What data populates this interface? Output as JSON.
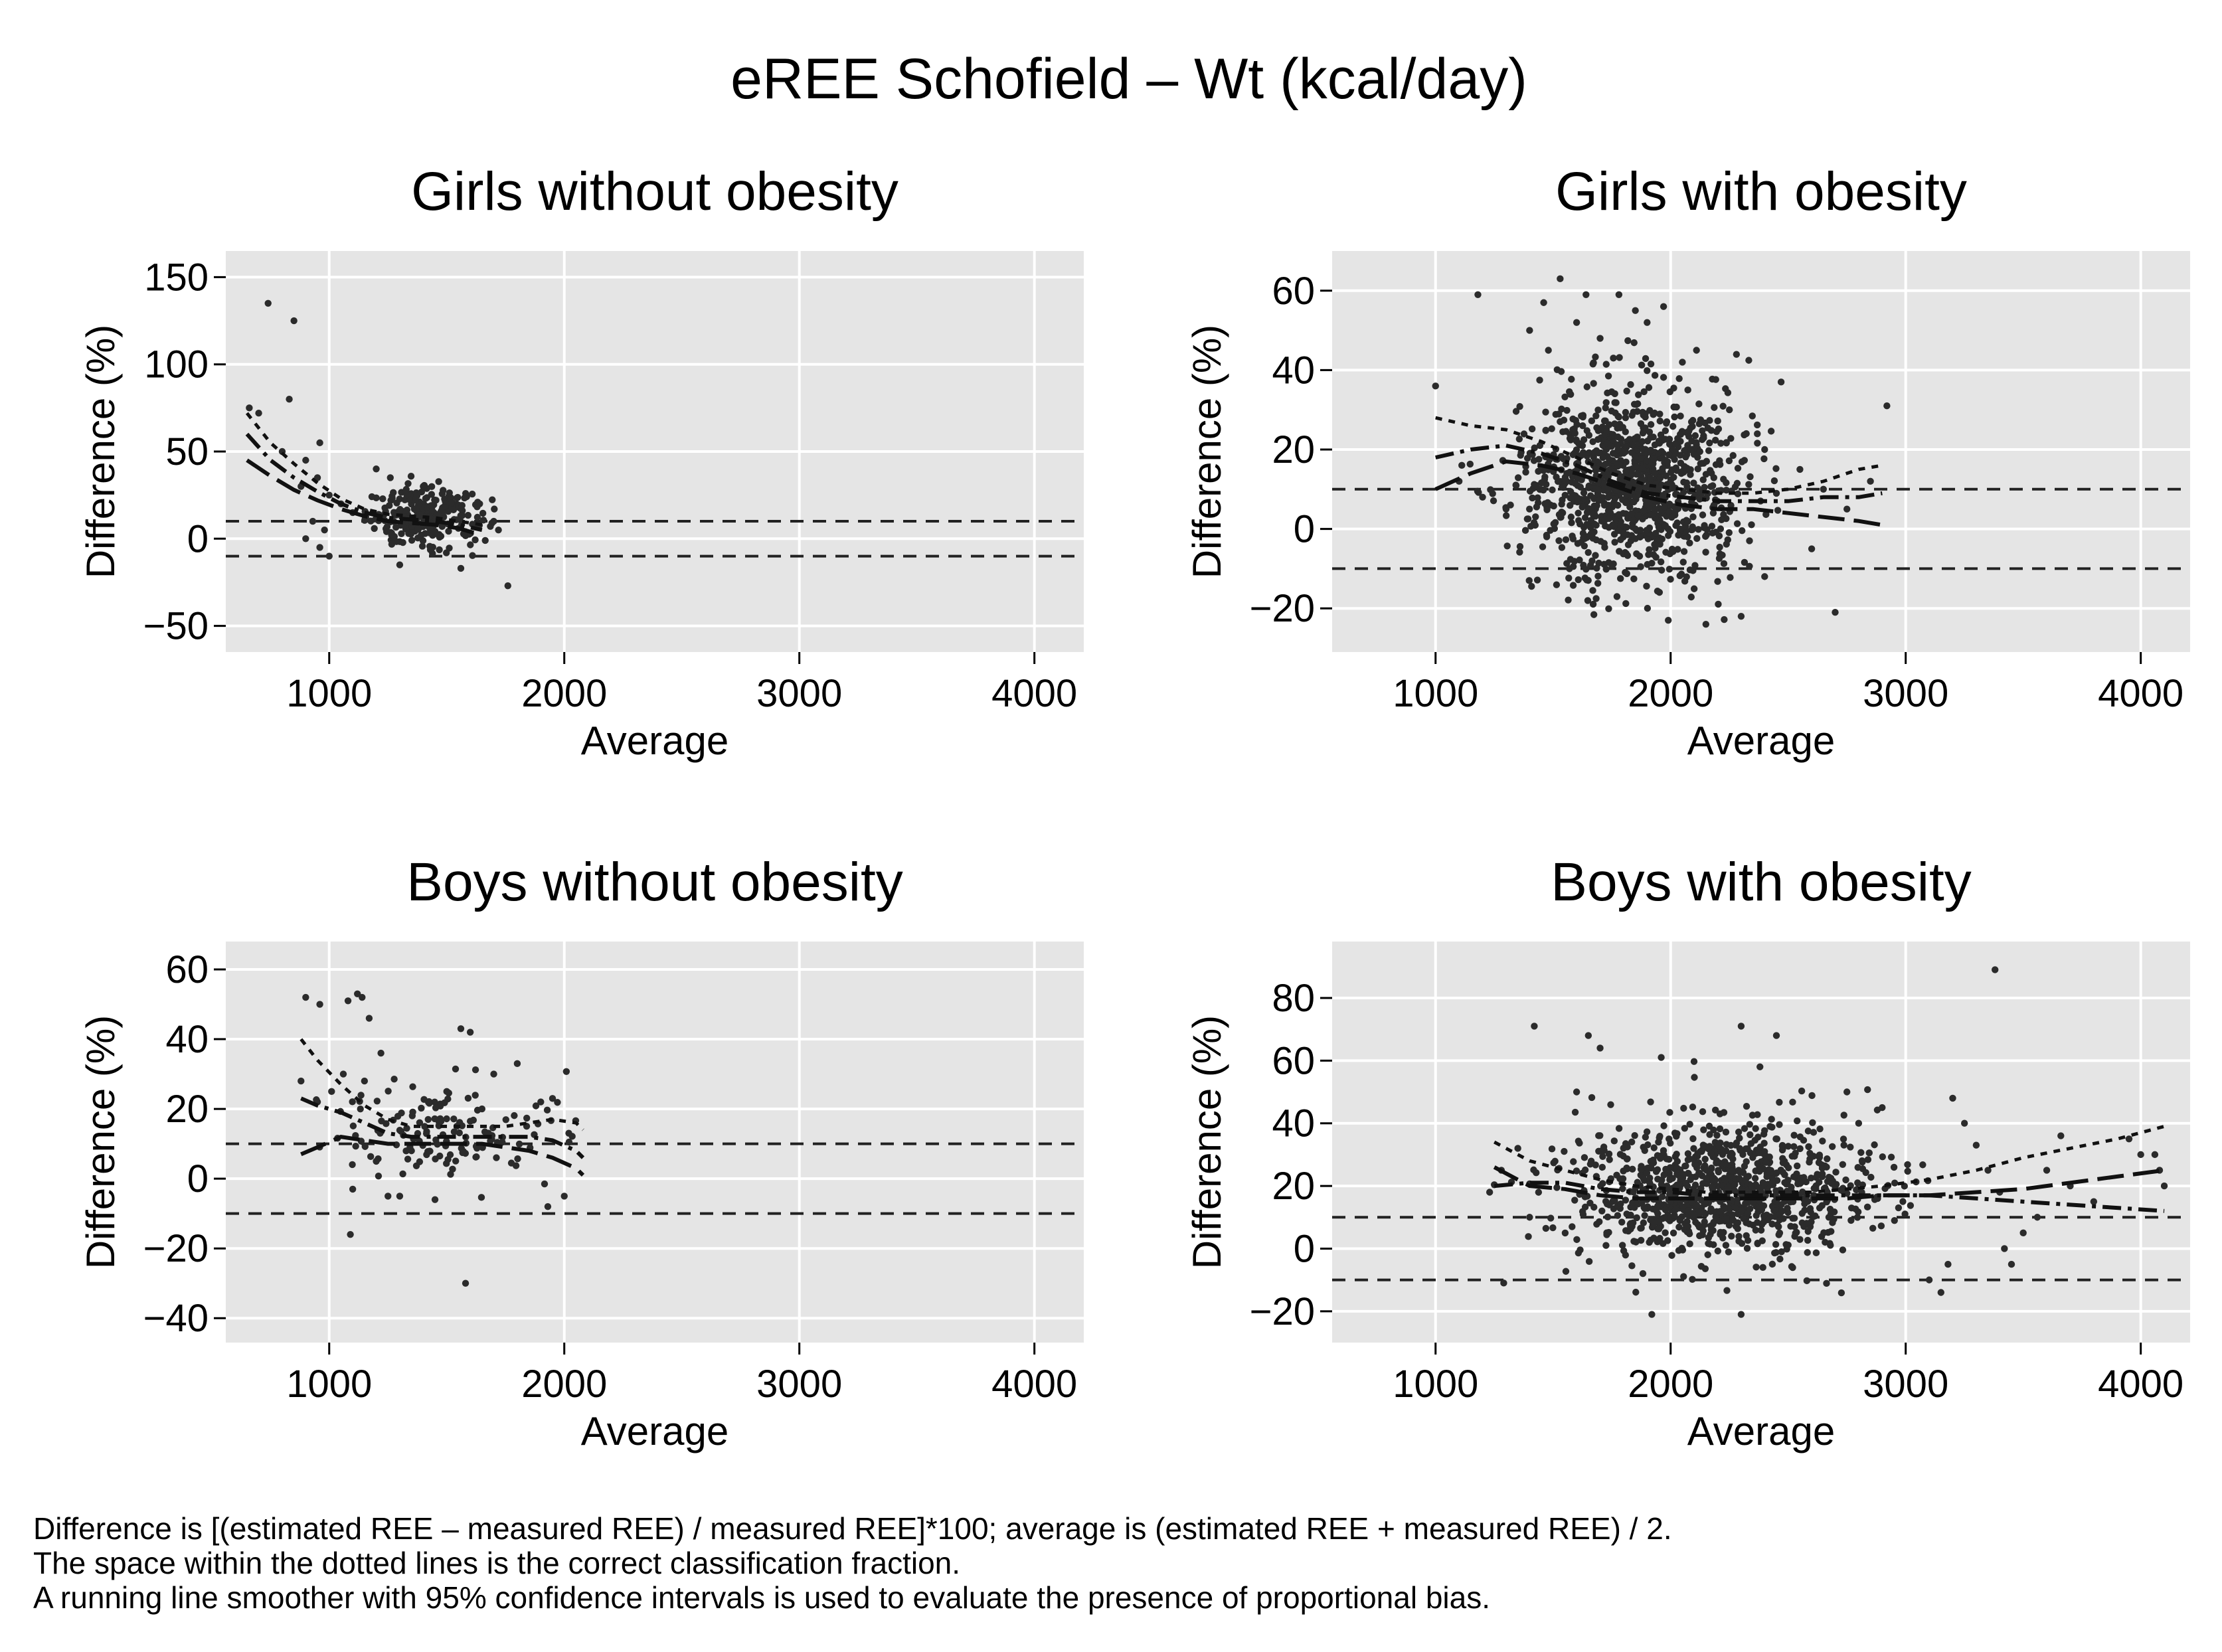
{
  "figure": {
    "title": "eREE Schofield – Wt (kcal/day)"
  },
  "footnotes": [
    "Difference is [(estimated REE – measured REE) / measured REE]*100; average is (estimated REE + measured REE) / 2.",
    "The space within the dotted lines is the correct classification fraction.",
    "A running line smoother with 95% confidence intervals is used to evaluate the presence of proportional bias."
  ],
  "chart_data": [
    {
      "type": "scatter",
      "title": "Girls without obesity",
      "xlabel": "Average",
      "ylabel": "Difference (%)",
      "xlim": [
        560,
        4210
      ],
      "ylim": [
        -65,
        165
      ],
      "xticks": [
        1000,
        2000,
        3000,
        4000
      ],
      "yticks": [
        -50,
        0,
        50,
        100,
        150
      ],
      "ytick_labels": [
        "−50",
        "0",
        "50",
        "100",
        "150"
      ],
      "reference_lines": [
        10,
        -10
      ],
      "grid": true,
      "cloud": {
        "x_mean": 1420,
        "x_sd": 130,
        "y_mean": 12,
        "y_sd": 8,
        "n": 260,
        "x_min": 1150,
        "x_max": 1760
      },
      "points": [
        [
          740,
          135
        ],
        [
          850,
          125
        ],
        [
          830,
          80
        ],
        [
          660,
          75
        ],
        [
          700,
          72
        ],
        [
          960,
          55
        ],
        [
          800,
          50
        ],
        [
          900,
          45
        ],
        [
          950,
          35
        ],
        [
          880,
          30
        ],
        [
          1000,
          25
        ],
        [
          1050,
          20
        ],
        [
          1100,
          15
        ],
        [
          930,
          10
        ],
        [
          980,
          5
        ],
        [
          900,
          0
        ],
        [
          960,
          -5
        ],
        [
          1000,
          -10
        ],
        [
          1300,
          -15
        ],
        [
          1560,
          -17
        ],
        [
          1760,
          -27
        ],
        [
          1200,
          40
        ],
        [
          1260,
          35
        ],
        [
          1330,
          25
        ],
        [
          1400,
          30
        ],
        [
          1640,
          20
        ],
        [
          1700,
          10
        ],
        [
          1720,
          5
        ]
      ],
      "smoother": [
        [
          650,
          60
        ],
        [
          750,
          45
        ],
        [
          850,
          35
        ],
        [
          950,
          27
        ],
        [
          1050,
          20
        ],
        [
          1150,
          15
        ],
        [
          1250,
          12
        ],
        [
          1350,
          11
        ],
        [
          1450,
          10
        ],
        [
          1550,
          8
        ],
        [
          1650,
          5
        ]
      ],
      "ci_upper": [
        [
          650,
          72
        ],
        [
          750,
          55
        ],
        [
          850,
          43
        ],
        [
          950,
          32
        ],
        [
          1050,
          23
        ],
        [
          1150,
          17
        ],
        [
          1250,
          14
        ],
        [
          1350,
          13
        ],
        [
          1450,
          12
        ],
        [
          1550,
          10
        ],
        [
          1650,
          8
        ]
      ],
      "ci_lower": [
        [
          650,
          45
        ],
        [
          750,
          36
        ],
        [
          850,
          28
        ],
        [
          950,
          22
        ],
        [
          1050,
          17
        ],
        [
          1150,
          13
        ],
        [
          1250,
          10
        ],
        [
          1350,
          9
        ],
        [
          1450,
          8
        ],
        [
          1550,
          6
        ],
        [
          1650,
          2
        ]
      ]
    },
    {
      "type": "scatter",
      "title": "Girls with obesity",
      "xlabel": "Average",
      "ylabel": "Difference (%)",
      "xlim": [
        560,
        4210
      ],
      "ylim": [
        -31,
        70
      ],
      "xticks": [
        1000,
        2000,
        3000,
        4000
      ],
      "yticks": [
        -20,
        0,
        20,
        40,
        60
      ],
      "ytick_labels": [
        "−20",
        "0",
        "20",
        "40",
        "60"
      ],
      "reference_lines": [
        10,
        -10
      ],
      "grid": true,
      "cloud": {
        "x_mean": 1820,
        "x_sd": 230,
        "y_mean": 12,
        "y_sd": 12,
        "n": 1100,
        "x_min": 1000,
        "x_max": 2900
      },
      "points": [
        [
          1000,
          36
        ],
        [
          1180,
          59
        ],
        [
          1530,
          63
        ],
        [
          1460,
          57
        ],
        [
          1640,
          59
        ],
        [
          1780,
          59
        ],
        [
          1850,
          55
        ],
        [
          1970,
          56
        ],
        [
          2110,
          45
        ],
        [
          2470,
          37
        ],
        [
          2700,
          -21
        ],
        [
          2920,
          31
        ],
        [
          2150,
          -24
        ],
        [
          1990,
          -23
        ],
        [
          2300,
          -22
        ],
        [
          1400,
          50
        ],
        [
          1480,
          45
        ],
        [
          1600,
          52
        ],
        [
          1700,
          48
        ],
        [
          1900,
          52
        ],
        [
          2050,
          42
        ],
        [
          2250,
          30
        ],
        [
          2400,
          20
        ],
        [
          2550,
          15
        ],
        [
          2650,
          10
        ],
        [
          2750,
          5
        ],
        [
          2850,
          12
        ],
        [
          2600,
          -5
        ],
        [
          2400,
          -12
        ],
        [
          1100,
          12
        ],
        [
          1200,
          8
        ],
        [
          1300,
          5
        ]
      ],
      "smoother": [
        [
          1000,
          18
        ],
        [
          1150,
          20
        ],
        [
          1300,
          21
        ],
        [
          1450,
          19
        ],
        [
          1600,
          16
        ],
        [
          1750,
          12
        ],
        [
          1900,
          9
        ],
        [
          2050,
          8
        ],
        [
          2200,
          7
        ],
        [
          2350,
          7
        ],
        [
          2500,
          7
        ],
        [
          2650,
          8
        ],
        [
          2800,
          8
        ],
        [
          2900,
          9
        ]
      ],
      "ci_upper": [
        [
          1000,
          28
        ],
        [
          1150,
          26
        ],
        [
          1300,
          25
        ],
        [
          1450,
          22
        ],
        [
          1600,
          18
        ],
        [
          1750,
          14
        ],
        [
          1900,
          11
        ],
        [
          2050,
          10
        ],
        [
          2200,
          9
        ],
        [
          2350,
          9
        ],
        [
          2500,
          10
        ],
        [
          2650,
          12
        ],
        [
          2800,
          15
        ],
        [
          2900,
          16
        ]
      ],
      "ci_lower": [
        [
          1000,
          10
        ],
        [
          1150,
          14
        ],
        [
          1300,
          17
        ],
        [
          1450,
          16
        ],
        [
          1600,
          14
        ],
        [
          1750,
          11
        ],
        [
          1900,
          8
        ],
        [
          2050,
          6
        ],
        [
          2200,
          5
        ],
        [
          2350,
          5
        ],
        [
          2500,
          4
        ],
        [
          2650,
          3
        ],
        [
          2800,
          2
        ],
        [
          2900,
          1
        ]
      ]
    },
    {
      "type": "scatter",
      "title": "Boys without obesity",
      "xlabel": "Average",
      "ylabel": "Difference (%)",
      "xlim": [
        560,
        4210
      ],
      "ylim": [
        -47,
        68
      ],
      "xticks": [
        1000,
        2000,
        3000,
        4000
      ],
      "yticks": [
        -40,
        -20,
        0,
        20,
        40,
        60
      ],
      "ytick_labels": [
        "−40",
        "−20",
        "0",
        "20",
        "40",
        "60"
      ],
      "reference_lines": [
        10,
        -10
      ],
      "grid": true,
      "cloud": {
        "x_mean": 1500,
        "x_sd": 300,
        "y_mean": 13,
        "y_sd": 7,
        "n": 150,
        "x_min": 900,
        "x_max": 2080
      },
      "points": [
        [
          900,
          52
        ],
        [
          960,
          50
        ],
        [
          1080,
          51
        ],
        [
          1120,
          53
        ],
        [
          1140,
          52
        ],
        [
          1170,
          46
        ],
        [
          1220,
          36
        ],
        [
          1560,
          43
        ],
        [
          1600,
          42
        ],
        [
          1580,
          -30
        ],
        [
          1090,
          -16
        ],
        [
          880,
          28
        ],
        [
          950,
          22
        ],
        [
          1010,
          25
        ],
        [
          1060,
          30
        ],
        [
          1150,
          28
        ],
        [
          1300,
          -5
        ],
        [
          1450,
          -6
        ],
        [
          1700,
          30
        ],
        [
          1800,
          33
        ],
        [
          1900,
          22
        ],
        [
          1950,
          23
        ],
        [
          2000,
          -5
        ],
        [
          1930,
          -8
        ],
        [
          1100,
          -3
        ],
        [
          1200,
          5
        ],
        [
          1250,
          -5
        ],
        [
          1350,
          8
        ],
        [
          1500,
          25
        ],
        [
          1650,
          20
        ]
      ],
      "smoother": [
        [
          880,
          23
        ],
        [
          950,
          21
        ],
        [
          1050,
          19
        ],
        [
          1150,
          16
        ],
        [
          1250,
          13
        ],
        [
          1350,
          12
        ],
        [
          1450,
          12
        ],
        [
          1550,
          12
        ],
        [
          1650,
          12
        ],
        [
          1750,
          12
        ],
        [
          1850,
          12
        ],
        [
          1950,
          11
        ],
        [
          2050,
          8
        ],
        [
          2080,
          6
        ]
      ],
      "ci_upper": [
        [
          880,
          40
        ],
        [
          950,
          34
        ],
        [
          1050,
          27
        ],
        [
          1150,
          21
        ],
        [
          1250,
          17
        ],
        [
          1350,
          15
        ],
        [
          1450,
          15
        ],
        [
          1550,
          15
        ],
        [
          1650,
          15
        ],
        [
          1750,
          15
        ],
        [
          1850,
          16
        ],
        [
          1950,
          17
        ],
        [
          2050,
          16
        ],
        [
          2080,
          14
        ]
      ],
      "ci_lower": [
        [
          880,
          7
        ],
        [
          950,
          9
        ],
        [
          1050,
          12
        ],
        [
          1150,
          11
        ],
        [
          1250,
          10
        ],
        [
          1350,
          10
        ],
        [
          1450,
          10
        ],
        [
          1550,
          10
        ],
        [
          1650,
          10
        ],
        [
          1750,
          9
        ],
        [
          1850,
          8
        ],
        [
          1950,
          6
        ],
        [
          2050,
          3
        ],
        [
          2080,
          1
        ]
      ]
    },
    {
      "type": "scatter",
      "title": "Boys with obesity",
      "xlabel": "Average",
      "ylabel": "Difference (%)",
      "xlim": [
        560,
        4210
      ],
      "ylim": [
        -30,
        98
      ],
      "xticks": [
        1000,
        2000,
        3000,
        4000
      ],
      "yticks": [
        -20,
        0,
        20,
        40,
        60,
        80
      ],
      "ytick_labels": [
        "−20",
        "0",
        "20",
        "40",
        "60",
        "80"
      ],
      "reference_lines": [
        10,
        -10
      ],
      "grid": true,
      "cloud": {
        "x_mean": 2220,
        "x_sd": 330,
        "y_mean": 18,
        "y_sd": 11,
        "n": 1000,
        "x_min": 1230,
        "x_max": 3200
      },
      "points": [
        [
          3380,
          89
        ],
        [
          1420,
          71
        ],
        [
          1650,
          68
        ],
        [
          1700,
          64
        ],
        [
          2300,
          71
        ],
        [
          2380,
          58
        ],
        [
          2450,
          68
        ],
        [
          1960,
          61
        ],
        [
          1600,
          50
        ],
        [
          1920,
          -21
        ],
        [
          2300,
          -21
        ],
        [
          1290,
          -11
        ],
        [
          3200,
          48
        ],
        [
          3250,
          40
        ],
        [
          3300,
          33
        ],
        [
          3350,
          25
        ],
        [
          3400,
          18
        ],
        [
          3420,
          0
        ],
        [
          3450,
          -5
        ],
        [
          3500,
          5
        ],
        [
          3560,
          10
        ],
        [
          3600,
          25
        ],
        [
          3660,
          36
        ],
        [
          3700,
          20
        ],
        [
          3800,
          15
        ],
        [
          3950,
          35
        ],
        [
          4000,
          30
        ],
        [
          4080,
          25
        ],
        [
          4100,
          20
        ],
        [
          4060,
          30
        ],
        [
          3100,
          -10
        ],
        [
          3150,
          -14
        ],
        [
          3180,
          -5
        ],
        [
          2900,
          45
        ],
        [
          2800,
          40
        ],
        [
          2750,
          50
        ],
        [
          1230,
          18
        ],
        [
          1280,
          25
        ],
        [
          1350,
          32
        ],
        [
          1400,
          10
        ]
      ],
      "smoother": [
        [
          1250,
          20
        ],
        [
          1400,
          21
        ],
        [
          1550,
          21
        ],
        [
          1700,
          19
        ],
        [
          1850,
          18
        ],
        [
          2000,
          18
        ],
        [
          2150,
          17
        ],
        [
          2300,
          17
        ],
        [
          2450,
          17
        ],
        [
          2600,
          17
        ],
        [
          2750,
          17
        ],
        [
          2900,
          17
        ],
        [
          3100,
          17
        ],
        [
          3300,
          16
        ],
        [
          3500,
          15
        ],
        [
          3700,
          14
        ],
        [
          3900,
          13
        ],
        [
          4100,
          12
        ]
      ],
      "ci_upper": [
        [
          1250,
          34
        ],
        [
          1400,
          28
        ],
        [
          1550,
          25
        ],
        [
          1700,
          22
        ],
        [
          1850,
          20
        ],
        [
          2000,
          19
        ],
        [
          2150,
          18
        ],
        [
          2300,
          18
        ],
        [
          2450,
          18
        ],
        [
          2600,
          18
        ],
        [
          2750,
          19
        ],
        [
          2900,
          20
        ],
        [
          3100,
          22
        ],
        [
          3300,
          25
        ],
        [
          3500,
          29
        ],
        [
          3700,
          32
        ],
        [
          3900,
          35
        ],
        [
          4100,
          39
        ]
      ],
      "ci_lower": [
        [
          1250,
          26
        ],
        [
          1400,
          20
        ],
        [
          1550,
          19
        ],
        [
          1700,
          17
        ],
        [
          1850,
          16
        ],
        [
          2000,
          16
        ],
        [
          2150,
          16
        ],
        [
          2300,
          16
        ],
        [
          2450,
          16
        ],
        [
          2600,
          16
        ],
        [
          2750,
          16
        ],
        [
          2900,
          17
        ],
        [
          3100,
          17
        ],
        [
          3300,
          18
        ],
        [
          3500,
          19
        ],
        [
          3700,
          21
        ],
        [
          3900,
          23
        ],
        [
          4100,
          25
        ]
      ]
    }
  ]
}
